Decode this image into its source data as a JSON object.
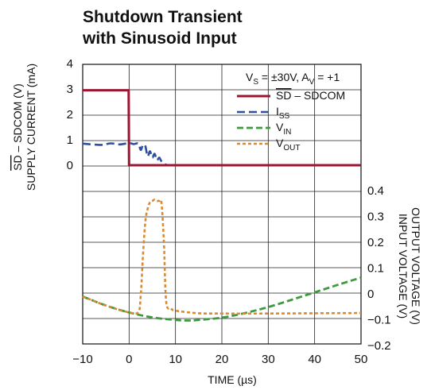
{
  "chart_data": {
    "type": "line",
    "title": "Shutdown Transient",
    "subtitle": "with Sinusoid Input",
    "xlabel": "TIME (µs)",
    "x_ticks": [
      "−10",
      "0",
      "10",
      "20",
      "30",
      "40",
      "50"
    ],
    "xlim": [
      -10,
      50
    ],
    "left_axis": {
      "label_line1": "SD – SDCOM (V)",
      "label_line2": "SUPPLY CURRENT (mA)",
      "ylim": [
        0,
        4
      ],
      "ticks": [
        "0",
        "1",
        "2",
        "3",
        "4"
      ]
    },
    "right_axis": {
      "label_line1": "INPUT VOLTAGE (V)",
      "label_line2": "OUTPUT VOLTAGE (V)",
      "ylim": [
        -0.2,
        0.4
      ],
      "ticks": [
        "0.4",
        "0.3",
        "0.2",
        "0.1",
        "0",
        "−0.1",
        "−0.2"
      ]
    },
    "grid": true,
    "legend_placement": "top-right",
    "conditions": {
      "vs_prefix": "V",
      "vs_sub": "S",
      "vs_value": " = ±30V, ",
      "av_prefix": "A",
      "av_sub": "V",
      "av_value": " = +1"
    },
    "series": [
      {
        "name": "SD – SDCOM",
        "legend_main": "SD",
        "legend_rest": " – SDCOM",
        "axis": "left",
        "color": "#9b1530",
        "style": "solid",
        "x": [
          -10,
          -0.1,
          0,
          50
        ],
        "y": [
          2.95,
          2.95,
          0,
          0
        ]
      },
      {
        "name": "ISS",
        "legend_main": "I",
        "legend_sub": "SS",
        "axis": "left",
        "color": "#2f4f9e",
        "style": "dashed",
        "x": [
          -10,
          -6,
          -4,
          -2,
          0,
          1,
          2,
          2.5,
          3,
          3.5,
          4,
          4.5,
          5,
          5.5,
          6,
          6.5,
          7,
          8,
          10,
          50
        ],
        "y": [
          0.85,
          0.8,
          0.86,
          0.82,
          0.87,
          0.83,
          0.85,
          0.6,
          0.8,
          0.75,
          0.35,
          0.55,
          0.3,
          0.45,
          0.2,
          0.3,
          0.15,
          0.02,
          0,
          0
        ]
      },
      {
        "name": "VIN",
        "legend_main": "V",
        "legend_sub": "IN",
        "axis": "right",
        "color": "#3f9a3f",
        "style": "dashdot",
        "x": [
          -10,
          -5,
          0,
          5,
          10,
          13,
          15,
          20,
          25,
          30,
          35,
          40,
          45,
          50
        ],
        "y": [
          -0.01,
          -0.045,
          -0.072,
          -0.091,
          -0.101,
          -0.103,
          -0.101,
          -0.092,
          -0.074,
          -0.051,
          -0.023,
          0.006,
          0.035,
          0.063
        ]
      },
      {
        "name": "VOUT",
        "legend_main": "V",
        "legend_sub": "OUT",
        "axis": "right",
        "color": "#d98b34",
        "style": "dotted",
        "x": [
          -10,
          -5,
          0,
          2,
          2.5,
          3,
          3.5,
          4,
          4.5,
          5,
          5.5,
          6,
          6.5,
          7,
          7.5,
          8,
          9,
          10,
          15,
          20,
          30,
          40,
          50
        ],
        "y": [
          -0.01,
          -0.045,
          -0.072,
          -0.07,
          -0.01,
          0.15,
          0.28,
          0.33,
          0.355,
          0.36,
          0.365,
          0.36,
          0.36,
          0.35,
          0.2,
          -0.03,
          -0.055,
          -0.065,
          -0.075,
          -0.076,
          -0.076,
          -0.075,
          -0.074
        ]
      }
    ]
  }
}
